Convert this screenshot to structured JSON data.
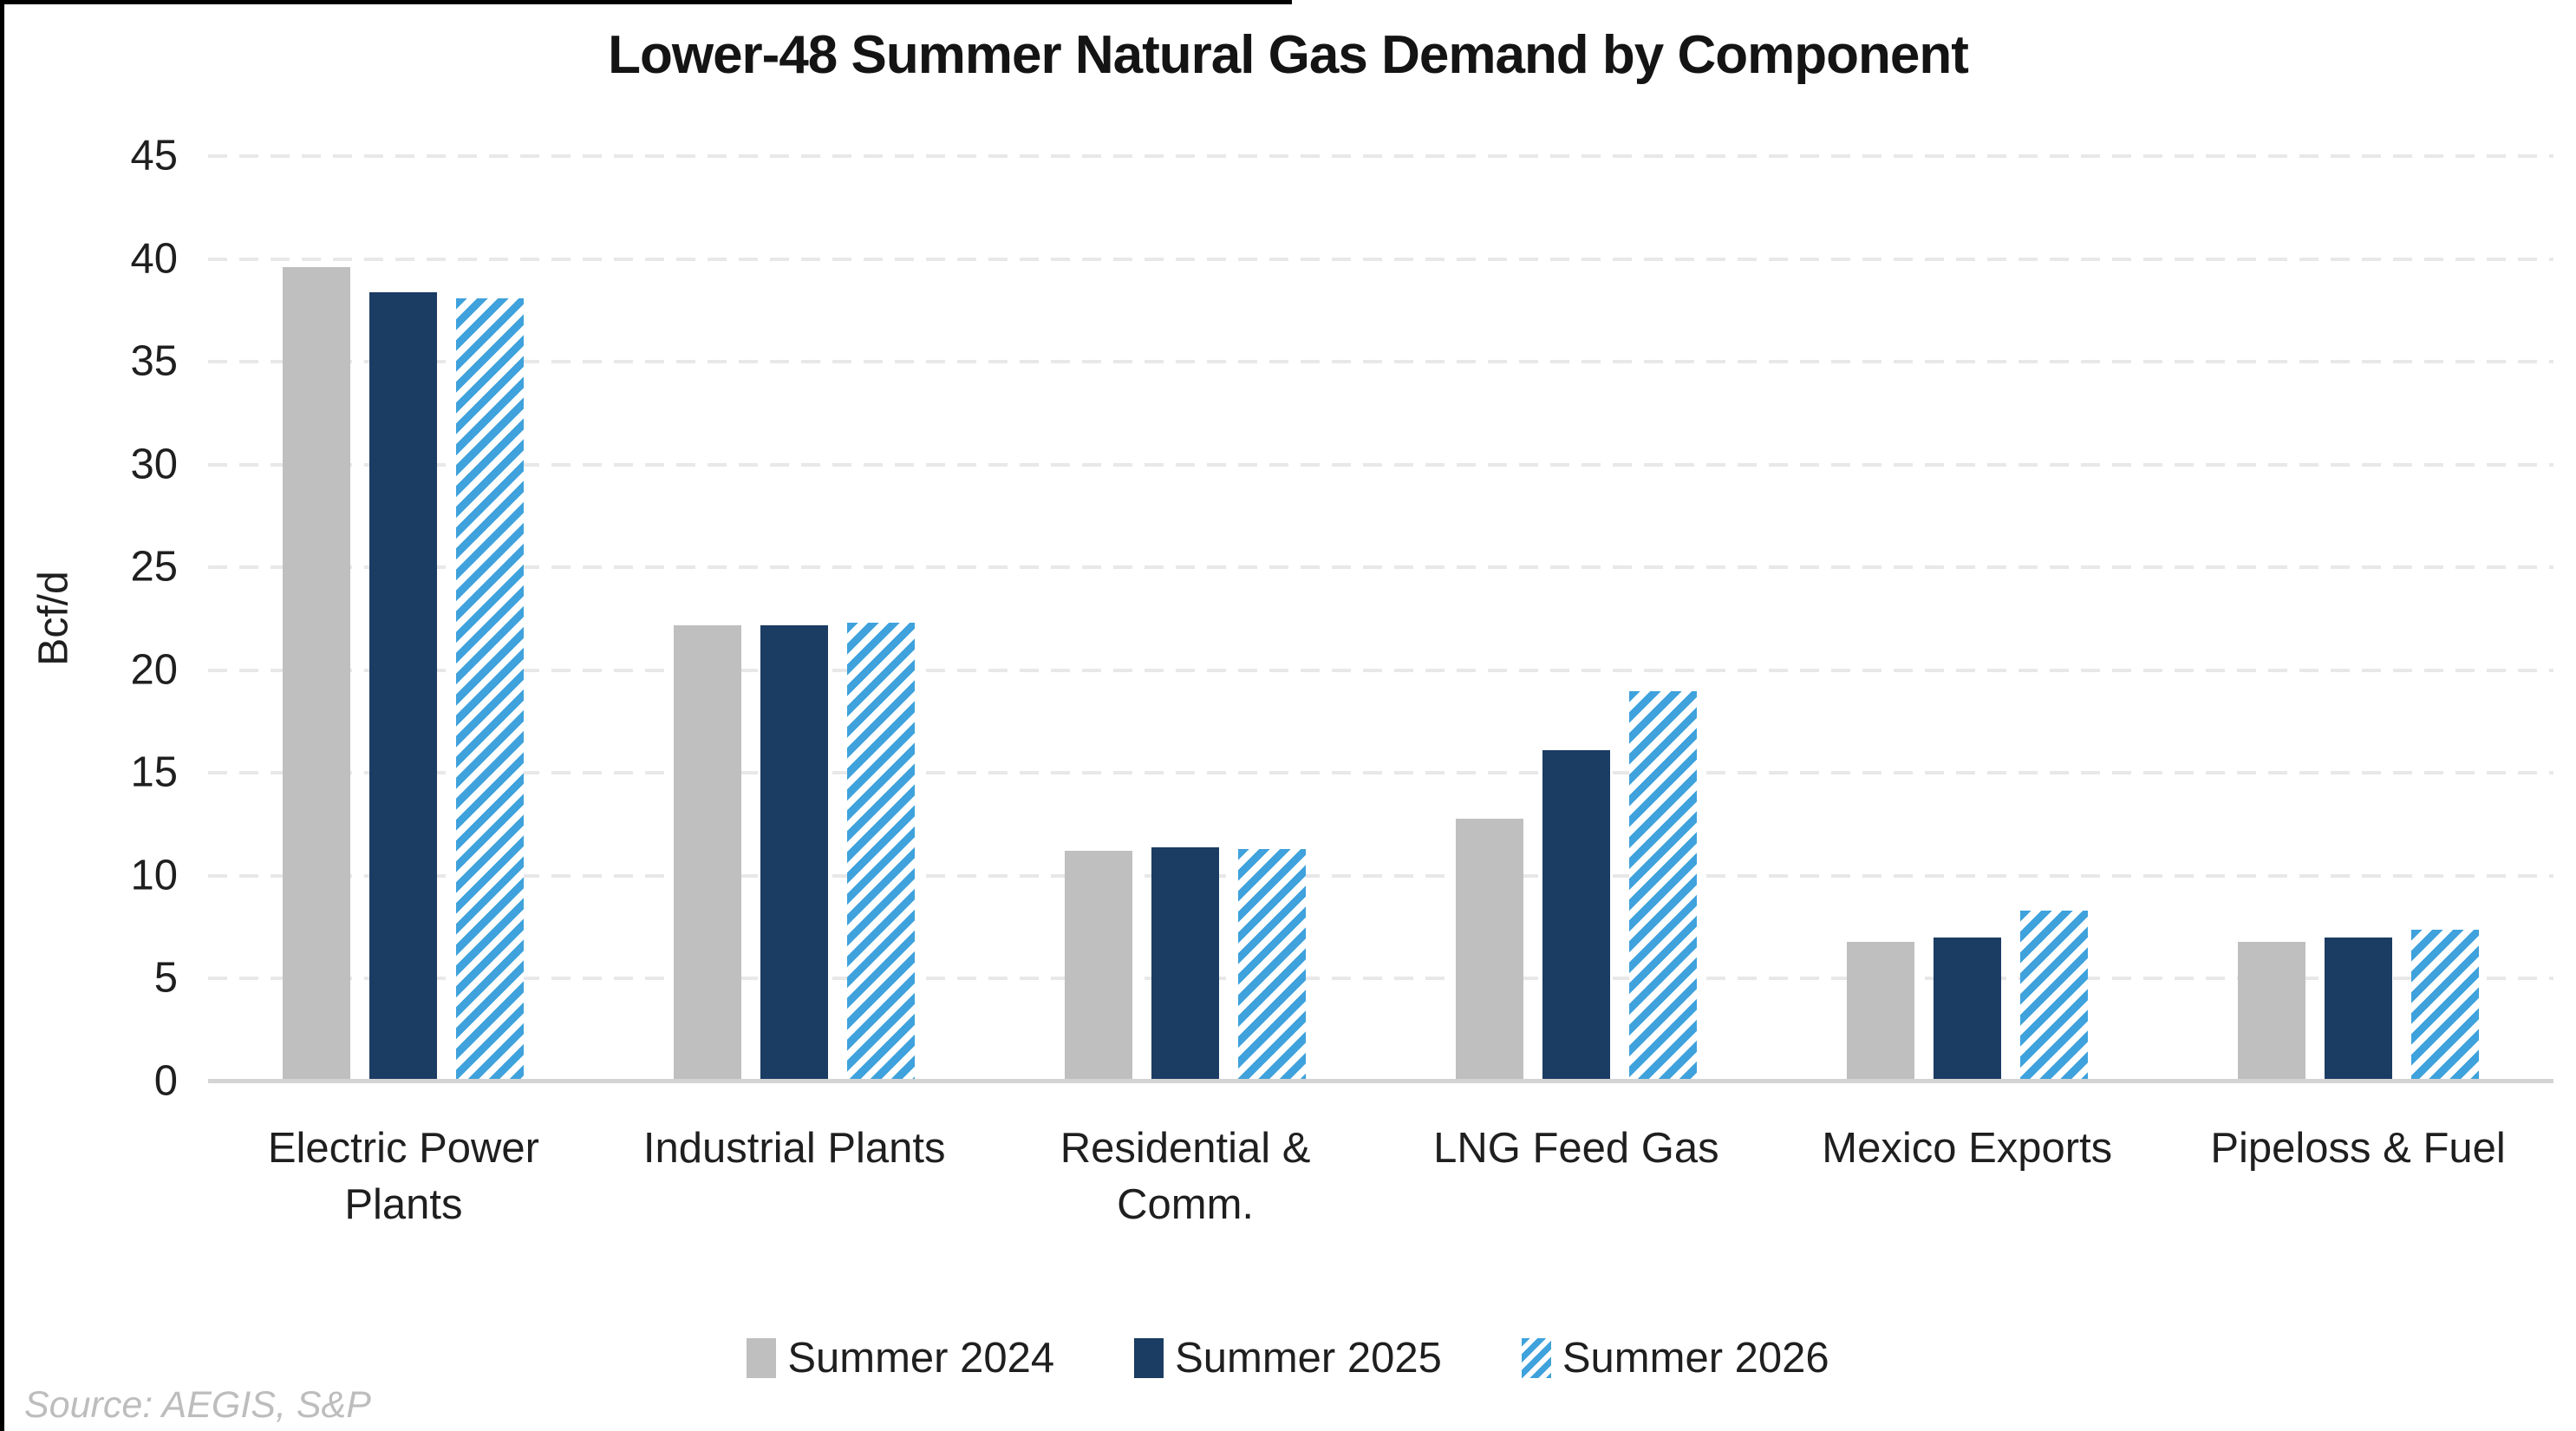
{
  "source": "Source: AEGIS, S&P",
  "colors": {
    "series_2024": "#BFBFBF",
    "series_2025": "#1B3C63",
    "series_2026": "#3FA2DC",
    "gridline": "#E8E8E8",
    "axis_line": "#D4D4D4",
    "title_text": "#141414",
    "source_text": "#BDBDBD"
  },
  "chart_data": {
    "type": "bar",
    "title": "Lower-48 Summer Natural Gas Demand by Component",
    "xlabel": "",
    "ylabel": "Bcf/d",
    "ylim": [
      0,
      45
    ],
    "yticks": [
      0,
      5,
      10,
      15,
      20,
      25,
      30,
      35,
      40,
      45
    ],
    "grid": "horizontal-dashed",
    "legend_position": "bottom",
    "categories": [
      "Electric Power Plants",
      "Industrial Plants",
      "Residential & Comm.",
      "LNG Feed Gas",
      "Mexico Exports",
      "Pipeloss & Fuel"
    ],
    "category_label_lines": [
      [
        "Electric Power",
        "Plants"
      ],
      [
        "Industrial Plants"
      ],
      [
        "Residential &",
        "Comm."
      ],
      [
        "LNG Feed Gas"
      ],
      [
        "Mexico Exports"
      ],
      [
        "Pipeloss & Fuel"
      ]
    ],
    "series": [
      {
        "name": "Summer 2024",
        "style": "solid",
        "color": "#BFBFBF",
        "values": [
          39.6,
          22.2,
          11.2,
          12.8,
          6.8,
          6.8
        ]
      },
      {
        "name": "Summer 2025",
        "style": "solid",
        "color": "#1B3C63",
        "values": [
          38.4,
          22.2,
          11.4,
          16.1,
          7.0,
          7.0
        ]
      },
      {
        "name": "Summer 2026",
        "style": "hatched",
        "color": "#3FA2DC",
        "values": [
          38.1,
          22.3,
          11.3,
          19.0,
          8.3,
          7.4
        ]
      }
    ]
  }
}
